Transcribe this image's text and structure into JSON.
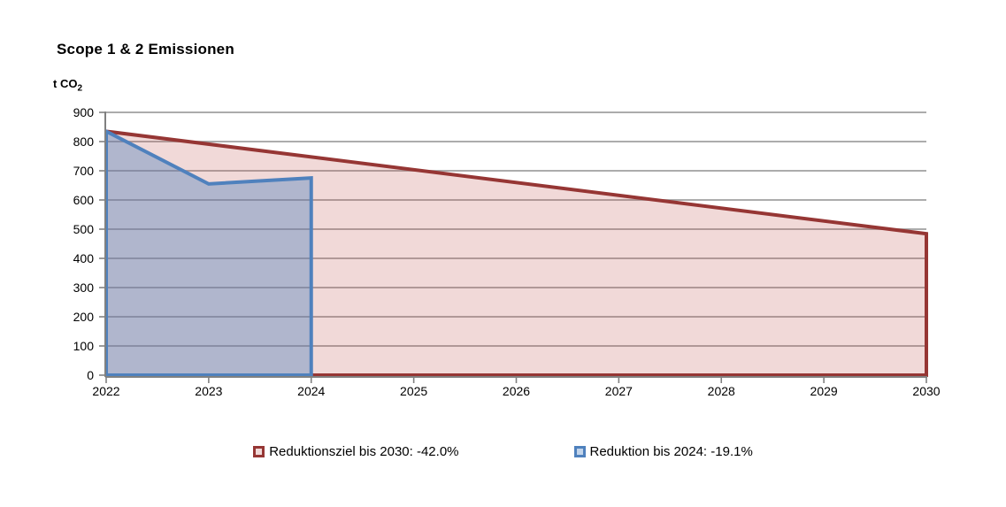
{
  "title": "Scope 1 & 2 Emissionen",
  "y_unit": {
    "base": "t CO",
    "sub": "2"
  },
  "colors": {
    "gridline": "#A0A0A0",
    "axis": "#808080",
    "tick_label": "#000000",
    "target_line": "#963634",
    "target_fill": "rgba(192,80,77,0.22)",
    "actual_line": "#4F81BD",
    "actual_fill": "rgba(79,129,189,0.40)"
  },
  "chart_data": {
    "type": "area",
    "title": "Scope 1 & 2 Emissionen",
    "ylabel": "t CO2",
    "xlabel": "",
    "grid": true,
    "legend_position": "bottom",
    "xlim": [
      2022,
      2030
    ],
    "ylim": [
      0,
      900
    ],
    "ytick_step": 100,
    "x": [
      2022,
      2023,
      2024,
      2025,
      2026,
      2027,
      2028,
      2029,
      2030
    ],
    "yticks": [
      0,
      100,
      200,
      300,
      400,
      500,
      600,
      700,
      800,
      900
    ],
    "series": [
      {
        "key": "reduktionsziel-2030",
        "name": "Reduktionsziel bis 2030: -42.0%",
        "line_color": "#963634",
        "area_fill": "rgba(192,80,77,0.22)",
        "legend_fill": "#F0D9D8",
        "points": [
          [
            2022,
            835
          ],
          [
            2030,
            484.3
          ]
        ]
      },
      {
        "key": "reduktion-2024",
        "name": "Reduktion bis 2024: -19.1%",
        "line_color": "#4F81BD",
        "area_fill": "rgba(79,129,189,0.40)",
        "legend_fill": "#C3D5EB",
        "points": [
          [
            2022,
            835
          ],
          [
            2023,
            655
          ],
          [
            2024,
            675.5
          ]
        ]
      }
    ]
  }
}
